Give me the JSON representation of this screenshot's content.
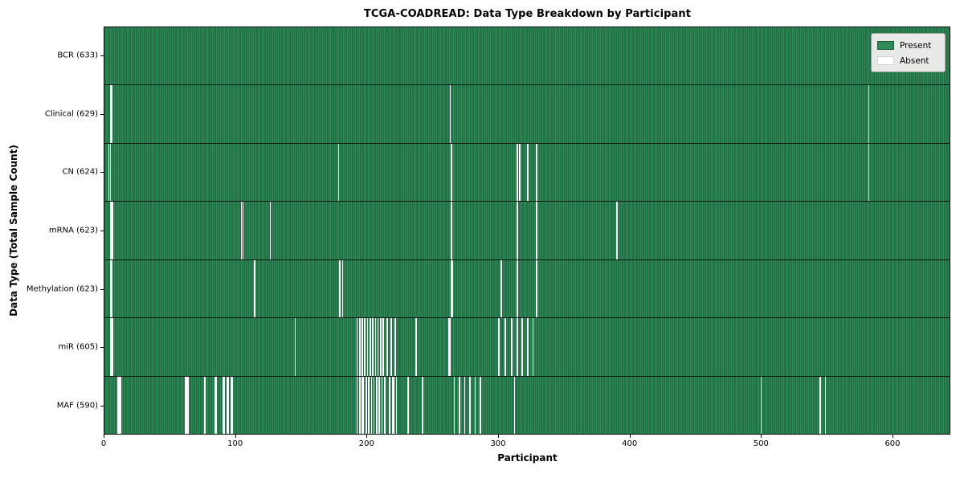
{
  "chart_data": {
    "type": "heatmap",
    "title": "TCGA-COADREAD: Data Type Breakdown by Participant",
    "xlabel": "Participant",
    "ylabel": "Data Type (Total Sample Count)",
    "x_ticks": [
      0,
      100,
      200,
      300,
      400,
      500,
      600
    ],
    "xlim": [
      0,
      644
    ],
    "n_participants": 633,
    "grid": false,
    "legend_position": "upper right",
    "legend": [
      {
        "label": "Present",
        "color": "#2e8b57"
      },
      {
        "label": "Absent",
        "color": "#ffffff"
      }
    ],
    "colors": {
      "present_fill": "#2e8b57",
      "bar_edge": "#1b5737",
      "absent_fill": "#ffffff",
      "plot_border": "#0d0d0d",
      "legend_bg": "#e7eae6"
    },
    "rows": [
      {
        "label": "BCR (633)",
        "data_type": "BCR",
        "present_count": 633,
        "absent_participants": []
      },
      {
        "label": "Clinical (629)",
        "data_type": "Clinical",
        "present_count": 629,
        "absent_participants": [
          4,
          5,
          263,
          582
        ]
      },
      {
        "label": "CN (624)",
        "data_type": "CN",
        "present_count": 624,
        "absent_participants": [
          3,
          4,
          178,
          264,
          314,
          316,
          322,
          329,
          582
        ]
      },
      {
        "label": "mRNA (623)",
        "data_type": "mRNA",
        "present_count": 623,
        "absent_participants": [
          4,
          5,
          6,
          104,
          105,
          126,
          264,
          314,
          329,
          390
        ]
      },
      {
        "label": "Methylation (623)",
        "data_type": "Methylation",
        "present_count": 623,
        "absent_participants": [
          4,
          5,
          114,
          179,
          181,
          264,
          265,
          302,
          314,
          329
        ]
      },
      {
        "label": "miR (605)",
        "data_type": "miR",
        "present_count": 605,
        "absent_participants": [
          4,
          5,
          6,
          145,
          192,
          194,
          196,
          198,
          200,
          202,
          204,
          206,
          208,
          210,
          212,
          215,
          218,
          221,
          237,
          262,
          263,
          300,
          305,
          310,
          314,
          318,
          322,
          326
        ]
      },
      {
        "label": "MAF (590)",
        "data_type": "MAF",
        "present_count": 590,
        "absent_participants": [
          10,
          11,
          12,
          61,
          62,
          63,
          76,
          84,
          85,
          90,
          91,
          93,
          94,
          96,
          97,
          192,
          194,
          196,
          197,
          199,
          201,
          203,
          205,
          207,
          209,
          211,
          213,
          217,
          219,
          220,
          222,
          231,
          242,
          266,
          270,
          274,
          278,
          282,
          286,
          312,
          500,
          545,
          549
        ]
      }
    ]
  }
}
